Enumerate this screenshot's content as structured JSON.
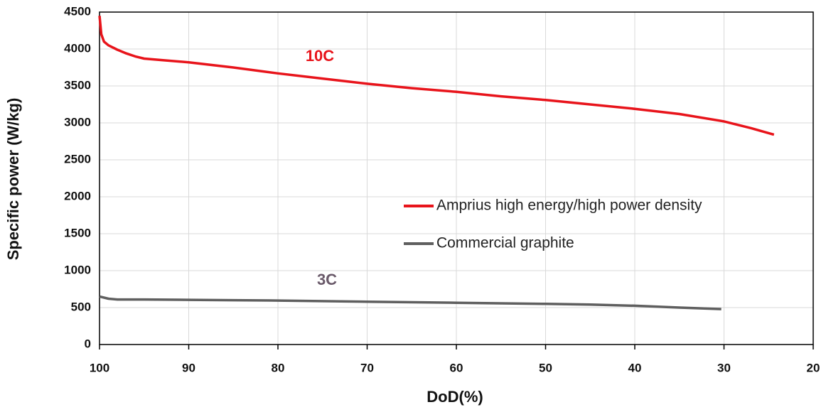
{
  "chart_data": {
    "type": "line",
    "x_label": "DoD(%)",
    "y_label": "Specific power (W/kg)",
    "xlim": [
      100,
      20
    ],
    "xticks": [
      100,
      90,
      80,
      70,
      60,
      50,
      40,
      30,
      20
    ],
    "ylim": [
      0,
      4500
    ],
    "yticks": [
      0,
      500,
      1000,
      1500,
      2000,
      2500,
      3000,
      3500,
      4000,
      4500
    ],
    "grid": true,
    "legend": "right",
    "annotations": [
      "10C",
      "3C"
    ],
    "series": [
      {
        "name": "Amprius high energy/high power density",
        "color": "#e8141b",
        "x": [
          100,
          99.8,
          99.5,
          99,
          98,
          97,
          96,
          95,
          93,
          90,
          85,
          80,
          75,
          70,
          65,
          60,
          55,
          50,
          45,
          40,
          35,
          30,
          27,
          24.4
        ],
        "values": [
          4450,
          4200,
          4100,
          4050,
          3990,
          3940,
          3900,
          3870,
          3850,
          3820,
          3750,
          3670,
          3600,
          3530,
          3470,
          3420,
          3360,
          3310,
          3250,
          3190,
          3120,
          3020,
          2930,
          2840
        ]
      },
      {
        "name": "Commercial graphite",
        "color": "#5f5f5f",
        "x": [
          100,
          99,
          98,
          95,
          90,
          85,
          80,
          70,
          60,
          50,
          45,
          40,
          35,
          30.3
        ],
        "values": [
          650,
          620,
          610,
          610,
          605,
          600,
          595,
          580,
          565,
          550,
          540,
          525,
          500,
          480
        ]
      }
    ]
  }
}
